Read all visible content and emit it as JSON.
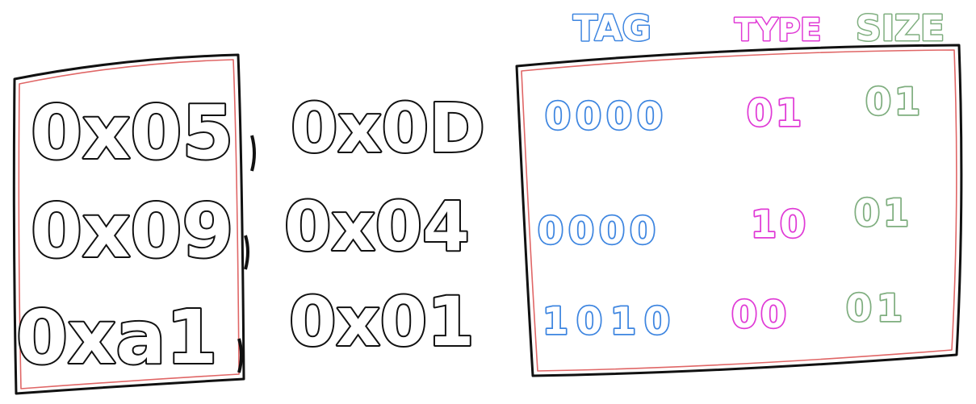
{
  "headers": {
    "tag": "TAG",
    "type": "TYPE",
    "size": "SIZE"
  },
  "rows": [
    {
      "left": "0x05",
      "right": "0x0D",
      "tag": "0000",
      "type": "01",
      "size": "01"
    },
    {
      "left": "0x09",
      "right": "0x04",
      "tag": "0000",
      "type": "10",
      "size": "01"
    },
    {
      "left": "0xa1",
      "right": "0x01",
      "tag": "1010",
      "type": "00",
      "size": "01"
    }
  ],
  "colors": {
    "ink": "#111111",
    "frame_accent": "#e06666",
    "tag": "#3d85e0",
    "type": "#e03ad6",
    "size": "#7fae7f"
  }
}
